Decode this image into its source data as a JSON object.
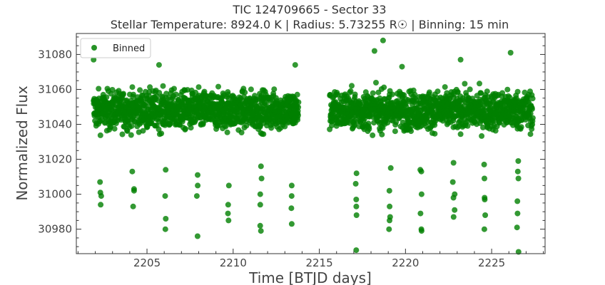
{
  "chart_data": {
    "type": "scatter",
    "title": "TIC 124709665 - Sector 33",
    "subtitle": "Stellar Temperature: 8924.0 K | Radius: 5.73255 R☉ | Binning: 15 min",
    "xlabel": "Time [BTJD days]",
    "ylabel": "Normalized Flux",
    "xlim": [
      2200.9,
      2228.1
    ],
    "ylim": [
      30966,
      31092
    ],
    "xticks": [
      2205,
      2210,
      2215,
      2220,
      2225
    ],
    "yticks": [
      30980,
      31000,
      31020,
      31040,
      31060,
      31080
    ],
    "legend": {
      "position": "top-left",
      "entries": [
        "Binned"
      ]
    },
    "marker_color": "#008000",
    "grid": false,
    "series": [
      {
        "name": "Binned",
        "segments": [
          {
            "x_range": [
              2201.9,
              2213.8
            ],
            "baseline": 31048,
            "scatter": 10
          },
          {
            "x_range": [
              2215.6,
              2227.4
            ],
            "baseline": 31048,
            "scatter": 10
          }
        ],
        "dips": [
          {
            "x": 2202.3,
            "y": [
              31007,
              31001,
              30999,
              30994
            ]
          },
          {
            "x": 2204.2,
            "y": [
              31013,
              31003,
              31002,
              30993
            ]
          },
          {
            "x": 2206.1,
            "y": [
              31014,
              30999,
              30986,
              30980
            ]
          },
          {
            "x": 2207.9,
            "y": [
              31011,
              31005,
              30999,
              30976
            ]
          },
          {
            "x": 2209.7,
            "y": [
              31005,
              30994,
              30989,
              30985
            ]
          },
          {
            "x": 2211.6,
            "y": [
              31016,
              31009,
              31000,
              30994,
              30982,
              30979
            ]
          },
          {
            "x": 2213.4,
            "y": [
              31005,
              30999,
              30992,
              30983
            ]
          },
          {
            "x": 2217.1,
            "y": [
              31012,
              31006,
              30997,
              30993,
              30988,
              30968
            ]
          },
          {
            "x": 2219.1,
            "y": [
              31015,
              31002,
              30993,
              30987,
              30985,
              30980
            ]
          },
          {
            "x": 2220.9,
            "y": [
              31014,
              31013,
              31000,
              30989,
              30980,
              30979
            ]
          },
          {
            "x": 2222.8,
            "y": [
              31018,
              31007,
              31000,
              30998,
              30991,
              30987
            ]
          },
          {
            "x": 2224.6,
            "y": [
              31017,
              31009,
              30998,
              30997,
              30988,
              30980
            ]
          },
          {
            "x": 2226.5,
            "y": [
              31019,
              31013,
              31009,
              30996,
              30989,
              30981,
              30967
            ]
          }
        ],
        "highlights": [
          {
            "x": 2201.9,
            "y": 31077
          },
          {
            "x": 2205.7,
            "y": 31074
          },
          {
            "x": 2213.6,
            "y": 31074
          },
          {
            "x": 2218.2,
            "y": 31082
          },
          {
            "x": 2218.7,
            "y": 31088
          },
          {
            "x": 2219.8,
            "y": 31073
          },
          {
            "x": 2223.2,
            "y": 31077
          },
          {
            "x": 2226.1,
            "y": 31081
          }
        ]
      }
    ]
  }
}
